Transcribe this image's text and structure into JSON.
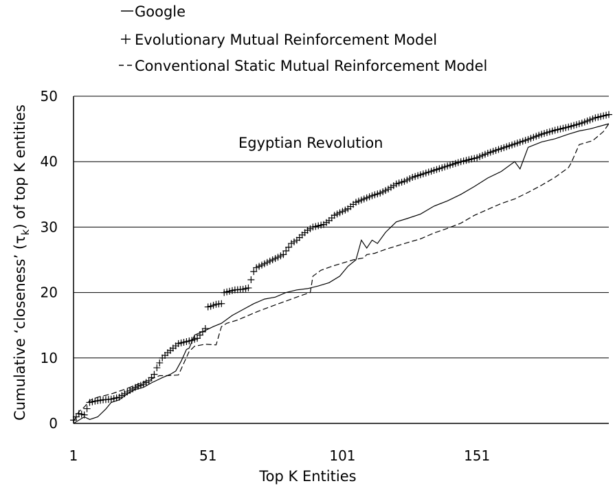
{
  "chart_data": {
    "type": "line",
    "title": "",
    "annotation": "Egyptian Revolution",
    "xlabel": "Top K Entities",
    "ylabel": "Cumulative ‘closeness’ (τk) of top K entities",
    "ylabel_parts": {
      "before": "Cumulative ‘closeness’ (τ",
      "sub": "k",
      "after": ") of top K entities"
    },
    "xlim": [
      1,
      200
    ],
    "ylim": [
      0,
      50
    ],
    "xticks": [
      1,
      51,
      101,
      151
    ],
    "yticks": [
      0,
      10,
      20,
      30,
      40,
      50
    ],
    "grid": "horizontal",
    "legend_position": "top-left",
    "series": [
      {
        "name": "Google",
        "style": "solid",
        "x": [
          1,
          5,
          7,
          10,
          13,
          15,
          18,
          21,
          24,
          27,
          30,
          34,
          37,
          39,
          41,
          43,
          44,
          46,
          50,
          53,
          56,
          60,
          64,
          68,
          72,
          76,
          80,
          84,
          88,
          92,
          96,
          100,
          103,
          106,
          108,
          110,
          112,
          114,
          117,
          121,
          125,
          130,
          135,
          140,
          145,
          150,
          155,
          160,
          165,
          167,
          170,
          175,
          180,
          185,
          189,
          193,
          200
        ],
        "y": [
          0,
          1,
          0.6,
          1,
          2.2,
          3.2,
          3.6,
          4.5,
          5.2,
          5.5,
          6.2,
          7,
          7.5,
          8,
          9.5,
          11.3,
          11.5,
          13.5,
          14.2,
          14.8,
          15.3,
          16.5,
          17.4,
          18.3,
          19,
          19.3,
          20,
          20.4,
          20.6,
          21,
          21.5,
          22.5,
          24,
          25,
          28,
          26.8,
          28,
          27.5,
          29.2,
          30.8,
          31.3,
          32,
          33.2,
          34,
          35,
          36.2,
          37.5,
          38.5,
          40,
          38.9,
          42.2,
          43,
          43.5,
          44.2,
          44.7,
          45,
          45.8
        ]
      },
      {
        "name": "Evolutionary Mutual Reinforcement Model",
        "style": "plus-markers",
        "x": [
          1,
          3,
          5,
          7,
          9,
          12,
          15,
          18,
          21,
          24,
          27,
          29,
          31,
          32,
          34,
          36,
          38,
          40,
          43,
          45,
          47,
          49,
          50,
          51,
          52,
          54,
          56,
          57,
          59,
          61,
          64,
          66,
          68,
          69,
          71,
          73,
          75,
          77,
          79,
          82,
          84,
          86,
          88,
          90,
          92,
          94,
          96,
          98,
          100,
          103,
          106,
          109,
          112,
          115,
          118,
          121,
          124,
          127,
          130,
          133,
          136,
          139,
          142,
          145,
          148,
          151,
          155,
          160,
          165,
          170,
          175,
          180,
          185,
          190,
          195,
          200
        ],
        "y": [
          0.5,
          1.5,
          1.3,
          3.2,
          3.4,
          3.6,
          3.7,
          4,
          4.8,
          5.5,
          6,
          6.5,
          7.5,
          8.5,
          10,
          10.8,
          11.5,
          12.2,
          12.5,
          12.7,
          13,
          14,
          14.5,
          17.8,
          17.9,
          18.2,
          18.3,
          20,
          20.2,
          20.4,
          20.5,
          20.7,
          23.2,
          23.8,
          24.2,
          24.6,
          25,
          25.4,
          25.8,
          27.5,
          28,
          28.8,
          29.5,
          30,
          30.2,
          30.4,
          31,
          31.8,
          32.2,
          32.8,
          33.8,
          34.3,
          34.8,
          35.2,
          35.8,
          36.6,
          37,
          37.6,
          38,
          38.4,
          38.8,
          39.2,
          39.6,
          40,
          40.3,
          40.6,
          41.3,
          42,
          42.7,
          43.4,
          44.2,
          44.8,
          45.3,
          45.9,
          46.7,
          47.2
        ]
      },
      {
        "name": "Conventional Static Mutual Reinforcement Model",
        "style": "dashed",
        "x": [
          1,
          3,
          5,
          7,
          10,
          15,
          20,
          25,
          30,
          33,
          36,
          40,
          44,
          46,
          50,
          54,
          56,
          58,
          62,
          66,
          70,
          74,
          78,
          82,
          86,
          89,
          90,
          93,
          97,
          101,
          105,
          109,
          110,
          113,
          117,
          121,
          125,
          130,
          135,
          140,
          145,
          150,
          155,
          160,
          165,
          170,
          175,
          180,
          185,
          186,
          189,
          194,
          198,
          200
        ],
        "y": [
          0.3,
          1.8,
          2.5,
          3.5,
          4,
          4.5,
          5.2,
          6,
          6.8,
          7.3,
          7.3,
          7.4,
          11,
          11.8,
          12.1,
          12,
          14.8,
          15.3,
          15.8,
          16.5,
          17.2,
          17.8,
          18.4,
          19,
          19.6,
          20,
          22.5,
          23.4,
          24,
          24.5,
          25,
          25.3,
          25.8,
          26,
          26.6,
          27.1,
          27.6,
          28.2,
          29.1,
          29.8,
          30.6,
          31.8,
          32.7,
          33.6,
          34.3,
          35.3,
          36.4,
          37.6,
          39.1,
          39.8,
          42.6,
          43.2,
          44.6,
          45.8
        ]
      }
    ]
  }
}
